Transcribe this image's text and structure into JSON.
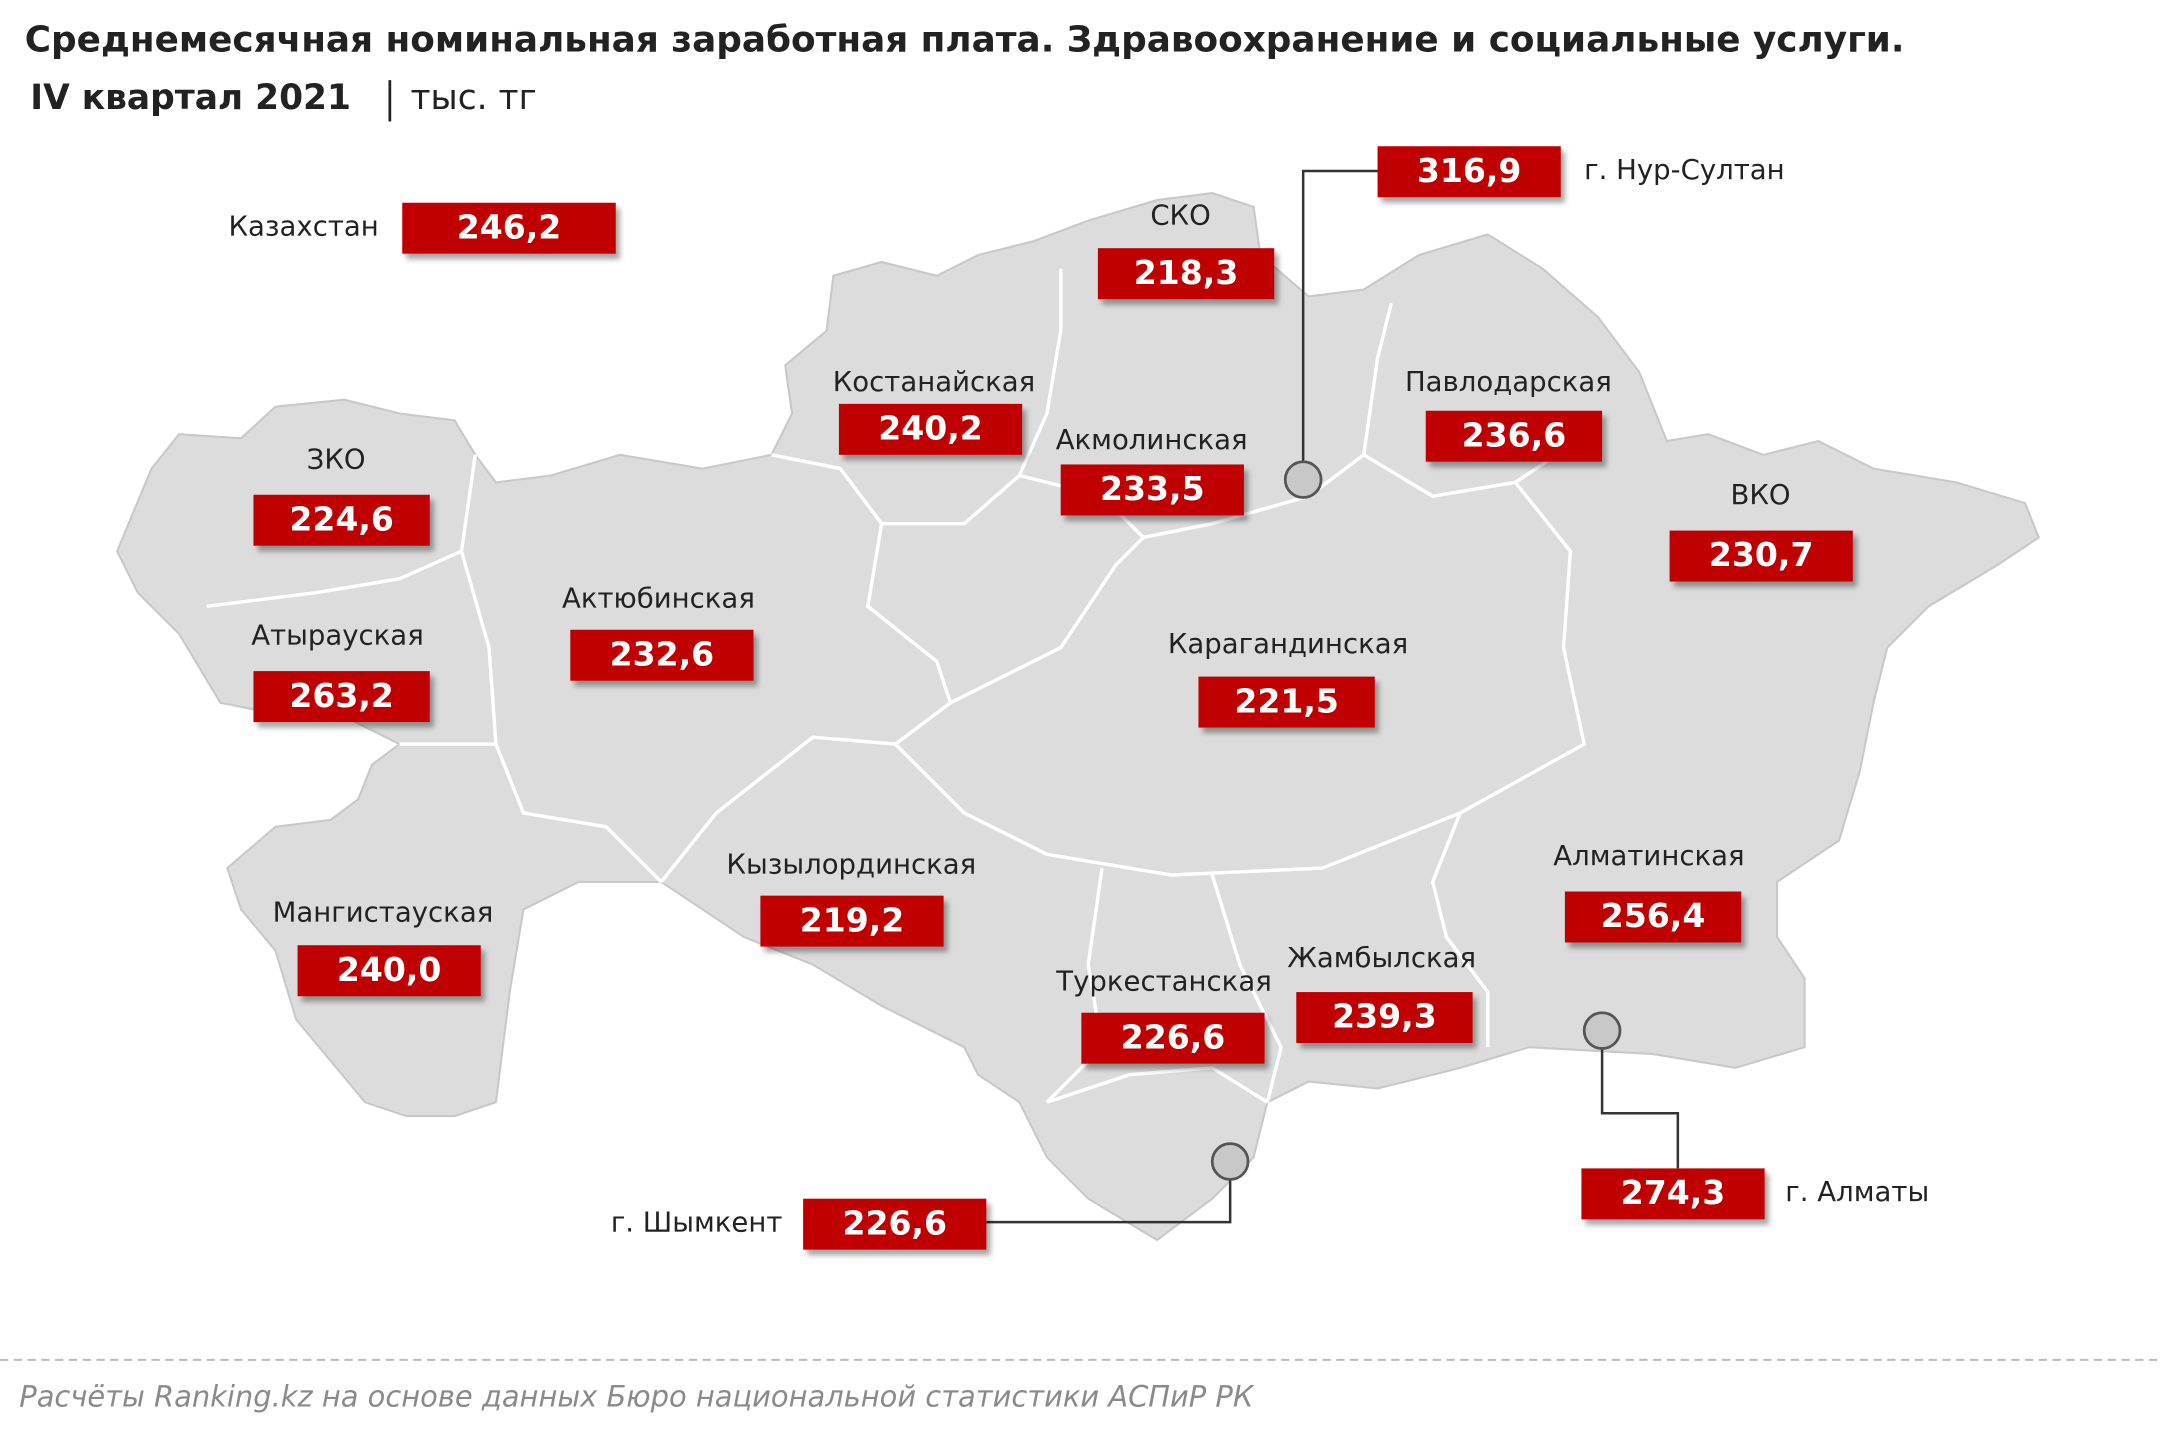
{
  "header": {
    "title": "Среднемесячная номинальная заработная плата. Здравоохранение и социальные услуги.",
    "period": "IV квартал 2021",
    "unit": "тыс. тг"
  },
  "regions": [
    {
      "name": "Казахстан",
      "value": "246,2"
    },
    {
      "name": "СКО",
      "value": "218,3"
    },
    {
      "name": "г. Нур-Султан",
      "value": "316,9"
    },
    {
      "name": "Костанайская",
      "value": "240,2"
    },
    {
      "name": "Акмолинская",
      "value": "233,5"
    },
    {
      "name": "Павлодарская",
      "value": "236,6"
    },
    {
      "name": "ЗКО",
      "value": "224,6"
    },
    {
      "name": "ВКО",
      "value": "230,7"
    },
    {
      "name": "Актюбинская",
      "value": "232,6"
    },
    {
      "name": "Атырауская",
      "value": "263,2"
    },
    {
      "name": "Карагандинская",
      "value": "221,5"
    },
    {
      "name": "Кызылординская",
      "value": "219,2"
    },
    {
      "name": "Алматинская",
      "value": "256,4"
    },
    {
      "name": "Мангистауская",
      "value": "240,0"
    },
    {
      "name": "Туркестанская",
      "value": "226,6"
    },
    {
      "name": "Жамбылская",
      "value": "239,3"
    },
    {
      "name": "г. Шымкент",
      "value": "226,6"
    },
    {
      "name": "г. Алматы",
      "value": "274,3"
    }
  ],
  "footer": "Расчёты Ranking.kz на основе данных Бюро национальной статистики АСПиР РК"
}
